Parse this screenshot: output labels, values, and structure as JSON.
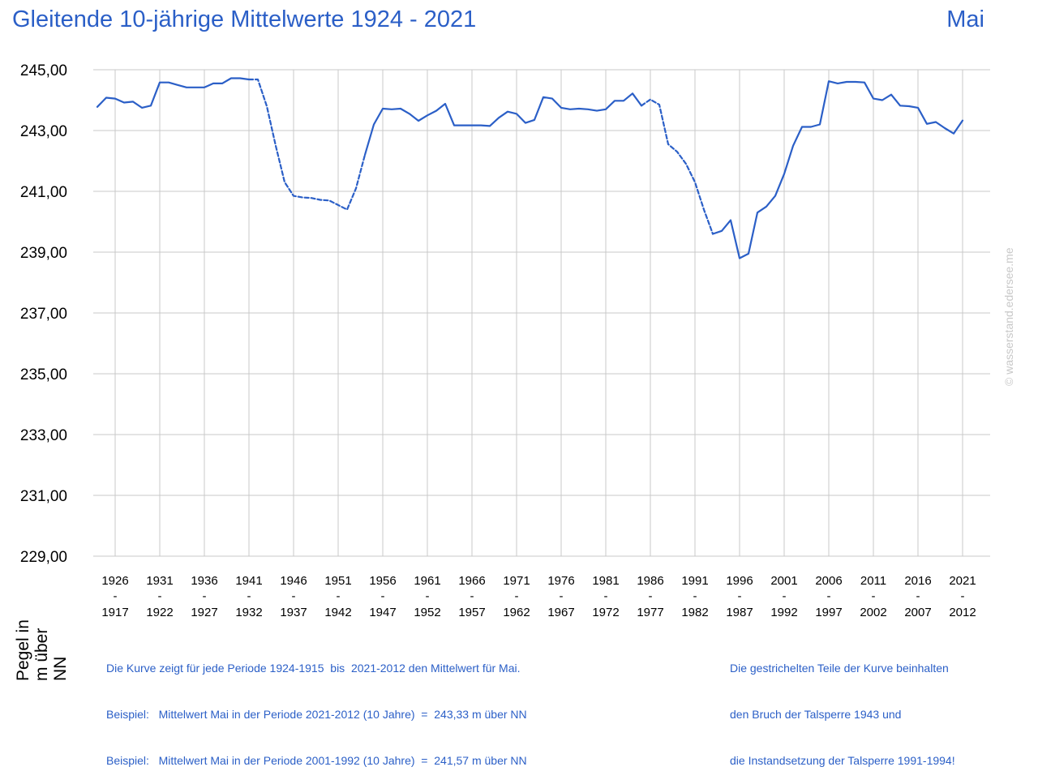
{
  "header": {
    "title": "Gleitende 10-jährige Mittelwerte 1924 - 2021",
    "month": "Mai"
  },
  "y_axis_label": [
    "Pegel in",
    "m über NN"
  ],
  "notes": {
    "left": [
      "Die Kurve zeigt für jede Periode 1924-1915  bis  2021-2012 den Mittelwert für Mai.",
      "Beispiel:   Mittelwert Mai in der Periode 2021-2012 (10 Jahre)  =  243,33 m über NN",
      "Beispiel:   Mittelwert Mai in der Periode 2001-1992 (10 Jahre)  =  241,57 m über NN"
    ],
    "right": [
      "Die gestrichelten Teile der Kurve beinhalten",
      "den Bruch der Talsperre 1943 und",
      "die Instandsetzung der Talsperre 1991-1994!"
    ]
  },
  "watermark": "© wasserstand.edersee.me",
  "colors": {
    "line": "#2b5fc7",
    "text_blue": "#2b5fc7",
    "grid": "#c8c8c8"
  },
  "chart_data": {
    "type": "line",
    "title": "Gleitende 10-jährige Mittelwerte 1924 - 2021",
    "x_range": [
      1924,
      2021
    ],
    "ylim": [
      229,
      245
    ],
    "y_ticks": [
      229,
      231,
      233,
      235,
      237,
      239,
      241,
      243,
      245
    ],
    "y_tick_labels": [
      "229,00",
      "231,00",
      "233,00",
      "235,00",
      "237,00",
      "239,00",
      "241,00",
      "243,00",
      "245,00"
    ],
    "x_ticks": [
      {
        "end": "1926",
        "start": "1917"
      },
      {
        "end": "1931",
        "start": "1922"
      },
      {
        "end": "1936",
        "start": "1927"
      },
      {
        "end": "1941",
        "start": "1932"
      },
      {
        "end": "1946",
        "start": "1937"
      },
      {
        "end": "1951",
        "start": "1942"
      },
      {
        "end": "1956",
        "start": "1947"
      },
      {
        "end": "1961",
        "start": "1952"
      },
      {
        "end": "1966",
        "start": "1957"
      },
      {
        "end": "1971",
        "start": "1962"
      },
      {
        "end": "1976",
        "start": "1967"
      },
      {
        "end": "1981",
        "start": "1972"
      },
      {
        "end": "1986",
        "start": "1977"
      },
      {
        "end": "1991",
        "start": "1982"
      },
      {
        "end": "1996",
        "start": "1987"
      },
      {
        "end": "2001",
        "start": "1992"
      },
      {
        "end": "2006",
        "start": "1997"
      },
      {
        "end": "2011",
        "start": "2002"
      },
      {
        "end": "2016",
        "start": "2007"
      },
      {
        "end": "2021",
        "start": "2012"
      }
    ],
    "x_tick_separator": "-",
    "grid": true,
    "dashed_ranges": [
      [
        1941,
        1954
      ],
      [
        1985,
        1993
      ]
    ],
    "series": [
      {
        "points": [
          [
            1924,
            243.78
          ],
          [
            1925,
            244.08
          ],
          [
            1926,
            244.05
          ],
          [
            1927,
            243.92
          ],
          [
            1928,
            243.95
          ],
          [
            1929,
            243.75
          ],
          [
            1930,
            243.82
          ],
          [
            1931,
            244.58
          ],
          [
            1932,
            244.58
          ],
          [
            1933,
            244.5
          ],
          [
            1934,
            244.42
          ],
          [
            1935,
            244.42
          ],
          [
            1936,
            244.42
          ],
          [
            1937,
            244.55
          ],
          [
            1938,
            244.55
          ],
          [
            1939,
            244.72
          ],
          [
            1940,
            244.72
          ],
          [
            1941,
            244.68
          ],
          [
            1942,
            244.68
          ],
          [
            1943,
            243.8
          ],
          [
            1944,
            242.5
          ],
          [
            1945,
            241.3
          ],
          [
            1946,
            240.85
          ],
          [
            1947,
            240.8
          ],
          [
            1948,
            240.78
          ],
          [
            1949,
            240.72
          ],
          [
            1950,
            240.7
          ],
          [
            1951,
            240.55
          ],
          [
            1952,
            240.4
          ],
          [
            1953,
            241.1
          ],
          [
            1954,
            242.2
          ],
          [
            1955,
            243.2
          ],
          [
            1956,
            243.72
          ],
          [
            1957,
            243.7
          ],
          [
            1958,
            243.72
          ],
          [
            1959,
            243.55
          ],
          [
            1960,
            243.32
          ],
          [
            1961,
            243.5
          ],
          [
            1962,
            243.65
          ],
          [
            1963,
            243.88
          ],
          [
            1964,
            243.17
          ],
          [
            1965,
            243.17
          ],
          [
            1966,
            243.17
          ],
          [
            1967,
            243.17
          ],
          [
            1968,
            243.15
          ],
          [
            1969,
            243.42
          ],
          [
            1970,
            243.62
          ],
          [
            1971,
            243.55
          ],
          [
            1972,
            243.25
          ],
          [
            1973,
            243.35
          ],
          [
            1974,
            244.1
          ],
          [
            1975,
            244.05
          ],
          [
            1976,
            243.75
          ],
          [
            1977,
            243.7
          ],
          [
            1978,
            243.72
          ],
          [
            1979,
            243.7
          ],
          [
            1980,
            243.65
          ],
          [
            1981,
            243.7
          ],
          [
            1982,
            243.98
          ],
          [
            1983,
            243.98
          ],
          [
            1984,
            244.22
          ],
          [
            1985,
            243.82
          ],
          [
            1986,
            244.02
          ],
          [
            1987,
            243.85
          ],
          [
            1988,
            242.55
          ],
          [
            1989,
            242.3
          ],
          [
            1990,
            241.9
          ],
          [
            1991,
            241.3
          ],
          [
            1992,
            240.4
          ],
          [
            1993,
            239.6
          ],
          [
            1994,
            239.7
          ],
          [
            1995,
            240.05
          ],
          [
            1996,
            238.8
          ],
          [
            1997,
            238.95
          ],
          [
            1998,
            240.3
          ],
          [
            1999,
            240.5
          ],
          [
            2000,
            240.85
          ],
          [
            2001,
            241.57
          ],
          [
            2002,
            242.5
          ],
          [
            2003,
            243.12
          ],
          [
            2004,
            243.12
          ],
          [
            2005,
            243.2
          ],
          [
            2006,
            244.62
          ],
          [
            2007,
            244.55
          ],
          [
            2008,
            244.6
          ],
          [
            2009,
            244.6
          ],
          [
            2010,
            244.58
          ],
          [
            2011,
            244.05
          ],
          [
            2012,
            244.0
          ],
          [
            2013,
            244.18
          ],
          [
            2014,
            243.82
          ],
          [
            2015,
            243.8
          ],
          [
            2016,
            243.75
          ],
          [
            2017,
            243.22
          ],
          [
            2018,
            243.28
          ],
          [
            2019,
            243.08
          ],
          [
            2020,
            242.9
          ],
          [
            2021,
            243.33
          ]
        ]
      }
    ]
  }
}
